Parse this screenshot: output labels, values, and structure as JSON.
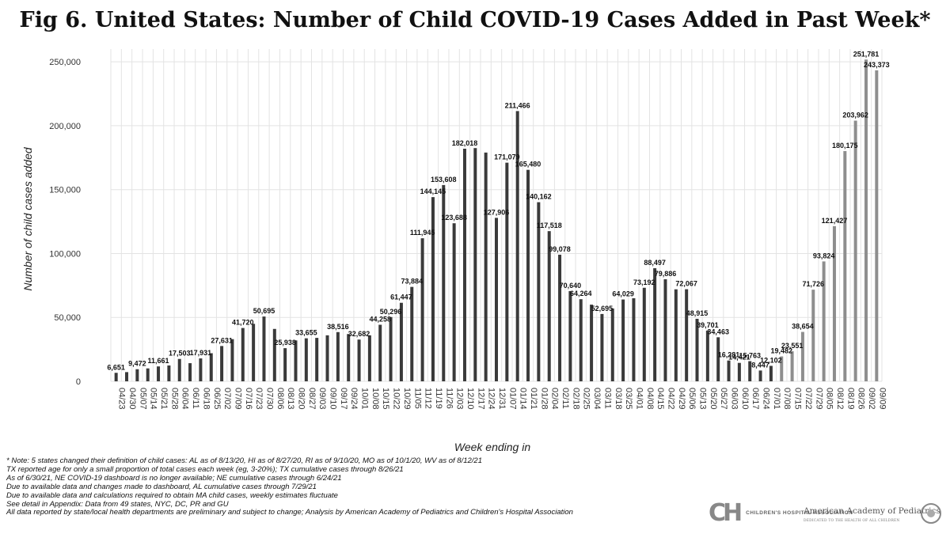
{
  "title": "Fig 6. United States: Number of Child COVID-19 Cases Added in Past Week*",
  "notes": [
    "* Note: 5 states changed their definition of child cases: AL as of 8/13/20, HI as of 8/27/20, RI as of 9/10/20, MO as of 10/1/20, WV as of 8/12/21",
    "TX reported age for only a small proportion of total cases each week (eg, 3-20%); TX cumulative cases through 8/26/21",
    "As of 6/30/21, NE COVID-19 dashboard is no longer available; NE cumulative cases through 6/24/21",
    "Due to available data and changes made to dashboard, AL cumulative cases through 7/29/21",
    "Due to available data and calculations required to obtain MA child cases, weekly estimates fluctuate",
    "See detail in Appendix: Data from 49 states, NYC, DC, PR and GU",
    "All data reported by state/local health departments are preliminary and subject to change; Analysis by American Academy of Pediatrics and Children's Hospital Association"
  ],
  "logos": {
    "chop_text": "CHILDREN'S HOSPITAL ASSOCIATION",
    "aap_name": "American Academy of Pediatrics",
    "aap_tagline": "DEDICATED TO THE HEALTH OF ALL CHILDREN"
  },
  "chart_data": {
    "type": "bar",
    "title": "Fig 6. United States: Number of Child COVID-19 Cases Added in Past Week*",
    "xlabel": "Week ending in",
    "ylabel": "Number of child cases added",
    "ylim": [
      0,
      260000
    ],
    "yticks": [
      0,
      50000,
      100000,
      150000,
      200000,
      250000
    ],
    "ytick_labels": [
      "0",
      "50,000",
      "100,000",
      "150,000",
      "200,000",
      "250,000"
    ],
    "grid": true,
    "legend": "none",
    "colors": {
      "dark": "#3a3a3a",
      "light": "#8e8e8e",
      "grid": "#e3e3e3"
    },
    "categories": [
      "04/23",
      "04/30",
      "05/07",
      "05/14",
      "05/21",
      "05/28",
      "06/04",
      "06/11",
      "06/18",
      "06/25",
      "07/02",
      "07/09",
      "07/16",
      "07/23",
      "07/30",
      "08/06",
      "08/13",
      "08/20",
      "08/27",
      "09/03",
      "09/10",
      "09/17",
      "09/24",
      "10/01",
      "10/08",
      "10/15",
      "10/22",
      "10/29",
      "11/05",
      "11/12",
      "11/19",
      "11/26",
      "12/03",
      "12/10",
      "12/17",
      "12/24",
      "12/31",
      "01/07",
      "01/14",
      "01/21",
      "01/28",
      "02/04",
      "02/11",
      "02/18",
      "02/25",
      "03/04",
      "03/11",
      "03/18",
      "03/25",
      "04/01",
      "04/08",
      "04/15",
      "04/22",
      "04/29",
      "05/06",
      "05/13",
      "05/20",
      "05/27",
      "06/03",
      "06/10",
      "06/17",
      "06/24",
      "07/01",
      "07/08",
      "07/15",
      "07/22",
      "07/29",
      "08/05",
      "08/12",
      "08/19",
      "08/26",
      "09/02",
      "09/09"
    ],
    "values": [
      6651,
      7200,
      9472,
      10100,
      11661,
      12400,
      17503,
      14200,
      17931,
      22000,
      27631,
      33000,
      41720,
      45000,
      50695,
      41000,
      25938,
      32000,
      33655,
      34000,
      36000,
      38516,
      37000,
      32682,
      36000,
      44258,
      50296,
      61447,
      73884,
      111945,
      144145,
      153608,
      123688,
      182018,
      182500,
      179000,
      127906,
      171079,
      211466,
      165480,
      140162,
      117518,
      99078,
      70640,
      64264,
      60000,
      52695,
      57000,
      64029,
      65000,
      73192,
      88497,
      79886,
      72000,
      72067,
      48915,
      39701,
      34463,
      16281,
      14421,
      15763,
      8447,
      12102,
      19482,
      23551,
      38654,
      71726,
      93824,
      121427,
      180175,
      203962,
      251781,
      243373
    ],
    "data_labels": [
      {
        "i": 0,
        "text": "6,651"
      },
      {
        "i": 2,
        "text": "9,472"
      },
      {
        "i": 4,
        "text": "11,661"
      },
      {
        "i": 6,
        "text": "17,503"
      },
      {
        "i": 8,
        "text": "17,931"
      },
      {
        "i": 10,
        "text": "27,631"
      },
      {
        "i": 12,
        "text": "41,720"
      },
      {
        "i": 14,
        "text": "50,695"
      },
      {
        "i": 16,
        "text": "25,938"
      },
      {
        "i": 18,
        "text": "33,655"
      },
      {
        "i": 21,
        "text": "38,516"
      },
      {
        "i": 23,
        "text": "32,682"
      },
      {
        "i": 25,
        "text": "44,258"
      },
      {
        "i": 26,
        "text": "50,296"
      },
      {
        "i": 27,
        "text": "61,447"
      },
      {
        "i": 28,
        "text": "73,884"
      },
      {
        "i": 29,
        "text": "111,945"
      },
      {
        "i": 30,
        "text": "144,145"
      },
      {
        "i": 31,
        "text": "153,608"
      },
      {
        "i": 32,
        "text": "123,688"
      },
      {
        "i": 33,
        "text": "182,018"
      },
      {
        "i": 36,
        "text": "127,906"
      },
      {
        "i": 37,
        "text": "171,079"
      },
      {
        "i": 38,
        "text": "211,466"
      },
      {
        "i": 39,
        "text": "165,480"
      },
      {
        "i": 40,
        "text": "140,162"
      },
      {
        "i": 41,
        "text": "117,518"
      },
      {
        "i": 42,
        "text": "99,078"
      },
      {
        "i": 43,
        "text": "70,640"
      },
      {
        "i": 44,
        "text": "64,264"
      },
      {
        "i": 46,
        "text": "52,695"
      },
      {
        "i": 48,
        "text": "64,029"
      },
      {
        "i": 50,
        "text": "73,192"
      },
      {
        "i": 51,
        "text": "88,497"
      },
      {
        "i": 52,
        "text": "79,886"
      },
      {
        "i": 54,
        "text": "72,067"
      },
      {
        "i": 55,
        "text": "48,915"
      },
      {
        "i": 56,
        "text": "39,701"
      },
      {
        "i": 57,
        "text": "34,463"
      },
      {
        "i": 58,
        "text": "16,281"
      },
      {
        "i": 59,
        "text": "14,421"
      },
      {
        "i": 60,
        "text": "15,763"
      },
      {
        "i": 61,
        "text": "8,447"
      },
      {
        "i": 62,
        "text": "12,102"
      },
      {
        "i": 63,
        "text": "19,482"
      },
      {
        "i": 64,
        "text": "23,551"
      },
      {
        "i": 65,
        "text": "38,654"
      },
      {
        "i": 66,
        "text": "71,726"
      },
      {
        "i": 67,
        "text": "93,824"
      },
      {
        "i": 68,
        "text": "121,427"
      },
      {
        "i": 69,
        "text": "180,175"
      },
      {
        "i": 70,
        "text": "203,962"
      },
      {
        "i": 71,
        "text": "251,781"
      },
      {
        "i": 72,
        "text": "243,373"
      }
    ],
    "light_from_index": 63
  }
}
